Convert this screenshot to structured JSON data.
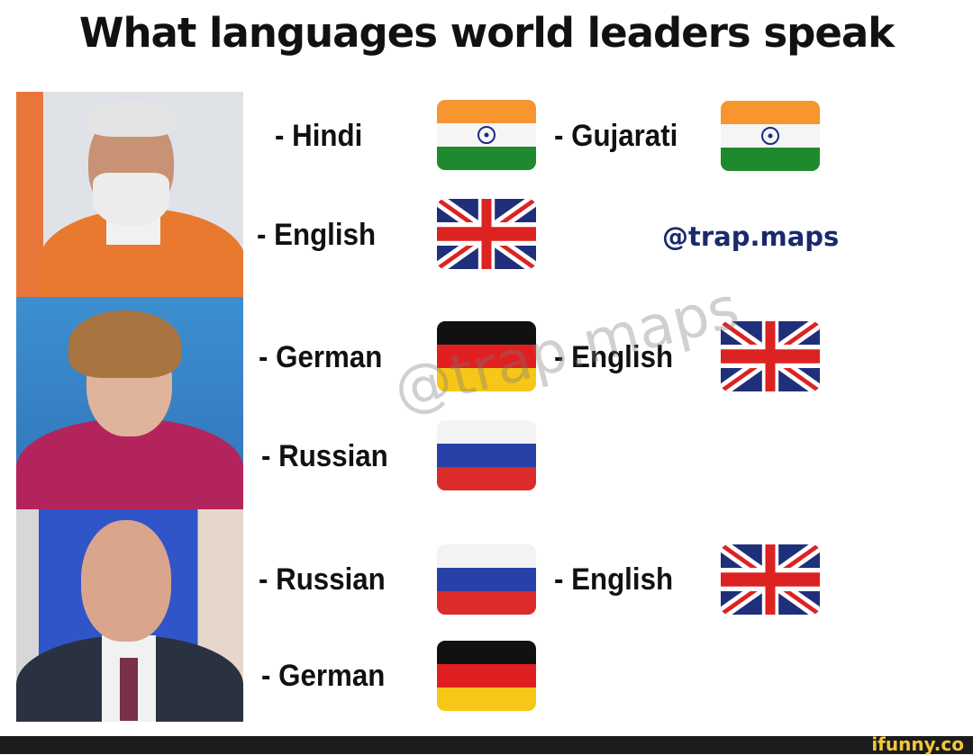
{
  "title": "What languages world leaders speak",
  "handle": "@trap.maps",
  "watermark": "@trap.maps",
  "site_logo": "ifunny.co",
  "leaders": [
    {
      "languages": [
        {
          "label": "- Hindi",
          "flag": "india"
        },
        {
          "label": "- Gujarati",
          "flag": "india"
        },
        {
          "label": "- English",
          "flag": "uk"
        }
      ]
    },
    {
      "languages": [
        {
          "label": "- German",
          "flag": "germany"
        },
        {
          "label": "- English",
          "flag": "uk"
        },
        {
          "label": "- Russian",
          "flag": "russia"
        }
      ]
    },
    {
      "languages": [
        {
          "label": "- Russian",
          "flag": "russia"
        },
        {
          "label": "- English",
          "flag": "uk"
        },
        {
          "label": "- German",
          "flag": "germany"
        }
      ]
    }
  ],
  "colors": {
    "bar": "#1c1c1c",
    "logo": "#f2c83a",
    "handle": "#1a2a6c"
  }
}
